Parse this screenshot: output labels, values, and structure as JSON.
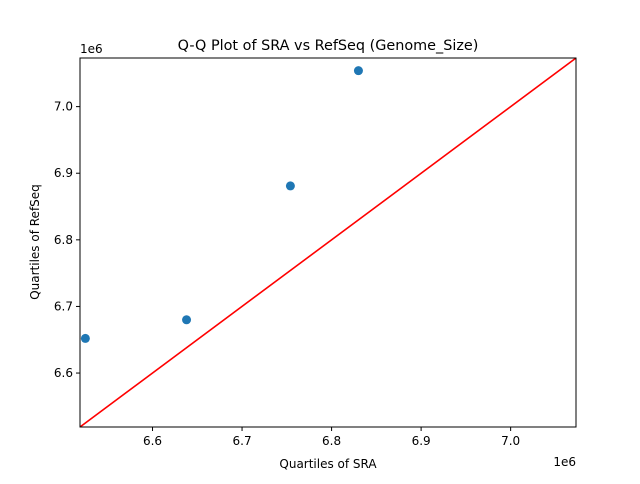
{
  "chart_data": {
    "type": "scatter",
    "title": "Q-Q Plot of SRA vs RefSeq (Genome_Size)",
    "xlabel": "Quartiles of SRA",
    "ylabel": "Quartiles of RefSeq",
    "x_offset_label": "1e6",
    "y_offset_label": "1e6",
    "xlim": [
      6.519,
      7.073
    ],
    "ylim": [
      6.519,
      7.073
    ],
    "xticks": [
      6.6,
      6.7,
      6.8,
      6.9,
      7.0
    ],
    "xtick_labels": [
      "6.6",
      "6.7",
      "6.8",
      "6.9",
      "7.0"
    ],
    "yticks": [
      6.6,
      6.7,
      6.8,
      6.9,
      7.0
    ],
    "ytick_labels": [
      "6.6",
      "6.7",
      "6.8",
      "6.9",
      "7.0"
    ],
    "grid": false,
    "points": {
      "x": [
        6.525,
        6.638,
        6.754,
        6.83
      ],
      "y": [
        6.652,
        6.68,
        6.881,
        7.054
      ],
      "color": "#1f77b4"
    },
    "reference_line": {
      "from": [
        6.519,
        6.519
      ],
      "to": [
        7.073,
        7.073
      ],
      "color": "#ff0000"
    }
  }
}
